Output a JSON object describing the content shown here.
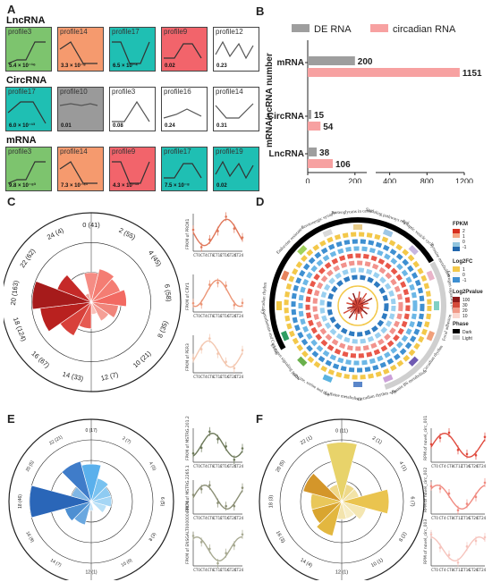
{
  "panels": {
    "A": {
      "letter": "A",
      "groups": [
        {
          "title": "LncRNA",
          "profiles": [
            {
              "name": "profile3",
              "p": "5.4 × 10⁻¹⁶",
              "color": "#7dc46e"
            },
            {
              "name": "profile14",
              "p": "3.3 × 10⁻⁸",
              "color": "#f59a6e"
            },
            {
              "name": "profile17",
              "p": "6.5 × 10⁻⁴",
              "color": "#1fbfb3"
            },
            {
              "name": "profile9",
              "p": "0.02",
              "color": "#f2646b"
            },
            {
              "name": "profile12",
              "p": "0.23",
              "color": "#ffffff"
            }
          ]
        },
        {
          "title": "CircRNA",
          "profiles": [
            {
              "name": "profile17",
              "p": "6.0 × 10⁻¹³",
              "color": "#1fbfb3"
            },
            {
              "name": "profile10",
              "p": "0.01",
              "color": "#9a9a9a"
            },
            {
              "name": "profile3",
              "p": "0.08",
              "color": "#ffffff"
            },
            {
              "name": "profile16",
              "p": "0.24",
              "color": "#ffffff"
            },
            {
              "name": "profile14",
              "p": "0.31",
              "color": "#ffffff"
            }
          ]
        },
        {
          "title": "mRNA",
          "profiles": [
            {
              "name": "profile3",
              "p": "9.8 × 10⁻⁸³",
              "color": "#7dc46e"
            },
            {
              "name": "profile14",
              "p": "7.3 × 10⁻⁴¹",
              "color": "#f59a6e"
            },
            {
              "name": "profile9",
              "p": "4.3 × 10⁻¹³",
              "color": "#f2646b"
            },
            {
              "name": "profile17",
              "p": "7.5 × 10⁻⁸",
              "color": "#1fbfb3"
            },
            {
              "name": "profile19",
              "p": "0.02",
              "color": "#1fbfb3"
            }
          ]
        }
      ]
    },
    "B": {
      "letter": "B",
      "ylabel": "mRNA/ncRNA number",
      "legend": [
        {
          "name": "DE RNA",
          "color": "#9e9e9e"
        },
        {
          "name": "circadian RNA",
          "color": "#f7a1a1"
        }
      ]
    },
    "C": {
      "letter": "C"
    },
    "D": {
      "letter": "D",
      "pathways": [
        "Endocrine resistance",
        "Serotonergic synapse",
        "Proteoglycans in cancer",
        "Signaling pathways regulating pluripotency of stem cells",
        "Synaptic vesicle cycle",
        "Tyrosine metabolism",
        "Estrogen signaling pathway",
        "Focal adhesion",
        "Circadian rhythm",
        "Vitamin B6 metabolism",
        "Circadian rhythm - fly",
        "Caffeine metabolism",
        "Glycine, serine and threonine metabolism",
        "Estrogen signaling pathway",
        "Pantothenate and CoA biosynthesis",
        "Circadian rhythm"
      ],
      "legend": {
        "fpkm_title": "FPKM",
        "fpkm_ticks": [
          "2",
          "1",
          "0",
          "-1"
        ],
        "log2fc_title": "Log2FC",
        "log2fc_ticks": [
          "1",
          "0",
          "-1"
        ],
        "pval_title": "Log2Pvalue",
        "pval_ticks": [
          "100",
          "30",
          "20",
          "10"
        ],
        "phase_title": "Phase",
        "phase_items": [
          "Dark",
          "Light"
        ]
      }
    },
    "E": {
      "letter": "E"
    },
    "F": {
      "letter": "F"
    }
  },
  "chart_data": [
    {
      "type": "bar",
      "orientation": "horizontal",
      "categories": [
        "mRNA",
        "CircRNA",
        "LncRNA"
      ],
      "series": [
        {
          "name": "DE RNA",
          "values": [
            200,
            15,
            38
          ]
        },
        {
          "name": "circadian RNA",
          "values": [
            1151,
            54,
            106
          ]
        }
      ],
      "xticks": [
        "0",
        "200",
        "400",
        "800",
        "1200"
      ],
      "ylabel": "mRNA/ncRNA number",
      "data_labels": [
        "200",
        "1151",
        "15",
        "54",
        "38",
        "106"
      ]
    },
    {
      "type": "rose",
      "panel": "C",
      "labels": [
        "0 (41)",
        "2 (55)",
        "4 (45)",
        "6 (58)",
        "8 (35)",
        "10 (21)",
        "12 (7)",
        "14 (33)",
        "16 (67)",
        "18 (124)",
        "20 (163)",
        "22 (62)",
        "24 (4)"
      ],
      "values": [
        41,
        55,
        45,
        58,
        35,
        21,
        7,
        33,
        67,
        124,
        163,
        62,
        4
      ]
    },
    {
      "type": "line",
      "panel": "C",
      "ylabels": [
        "FPKM of PROX1",
        "FPKM of CRY1",
        "FPKM of PER3"
      ],
      "x": [
        "CT0",
        "CT4",
        "CT8",
        "CT12",
        "CT16",
        "CT20",
        "CT24"
      ]
    },
    {
      "type": "rose",
      "panel": "E",
      "labels": [
        "0 (17)",
        "2 (7)",
        "4 (5)",
        "6 (5)",
        "8 (3)",
        "10 (0)",
        "12 (1)",
        "14 (7)",
        "16 (9)",
        "18 (46)",
        "20 (5)",
        "22 (21)"
      ],
      "values": [
        17,
        7,
        5,
        5,
        3,
        0,
        1,
        7,
        9,
        46,
        5,
        21
      ]
    },
    {
      "type": "line",
      "panel": "E",
      "ylabels": [
        "FPKM of MSTRG.201.2",
        "FPKM of MSTRG.2265.1",
        "FPKM of ENSGALT00000048874"
      ]
    },
    {
      "type": "rose",
      "panel": "F",
      "labels": [
        "0 (11)",
        "2 (1)",
        "4 (1)",
        "6 (7)",
        "8 (2)",
        "10 (1)",
        "12 (1)",
        "14 (4)",
        "16 (3)",
        "18 (3)",
        "20 (5)",
        "22 (1)"
      ],
      "values": [
        11,
        1,
        1,
        7,
        2,
        1,
        1,
        4,
        3,
        3,
        5,
        1
      ]
    },
    {
      "type": "line",
      "panel": "F",
      "ylabels": [
        "RPM of novel_circ_001",
        "RPM of novel_circ_002",
        "RPM of novel_circ_003"
      ]
    }
  ]
}
